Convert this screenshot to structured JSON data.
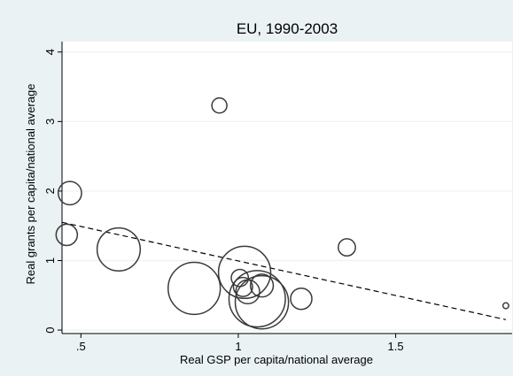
{
  "chart_data": {
    "type": "scatter",
    "title": "EU, 1990-2003",
    "xlabel": "Real GSP per capita/national average",
    "ylabel": "Real grants per capita/national average",
    "xlim": [
      0.44,
      1.87
    ],
    "ylim": [
      -0.05,
      4.15
    ],
    "xticks": [
      0.5,
      1,
      1.5
    ],
    "xtick_labels": [
      ".5",
      "1",
      "1.5"
    ],
    "yticks": [
      0,
      1,
      2,
      3,
      4
    ],
    "ytick_labels": [
      "0",
      "1",
      "2",
      "3",
      "4"
    ],
    "grid": "horizontal",
    "legend": "none",
    "points": [
      {
        "x": 0.94,
        "y": 3.23,
        "weight": 1.0
      },
      {
        "x": 0.465,
        "y": 1.97,
        "weight": 2.4
      },
      {
        "x": 0.455,
        "y": 1.37,
        "weight": 2.0
      },
      {
        "x": 0.62,
        "y": 1.16,
        "weight": 8.2
      },
      {
        "x": 0.86,
        "y": 0.6,
        "weight": 12.0
      },
      {
        "x": 1.005,
        "y": 0.75,
        "weight": 1.3
      },
      {
        "x": 1.015,
        "y": 0.62,
        "weight": 1.6
      },
      {
        "x": 1.02,
        "y": 0.83,
        "weight": 12.0
      },
      {
        "x": 1.03,
        "y": 0.55,
        "weight": 2.5
      },
      {
        "x": 1.06,
        "y": 0.45,
        "weight": 14.0
      },
      {
        "x": 1.075,
        "y": 0.4,
        "weight": 12.5
      },
      {
        "x": 1.075,
        "y": 0.64,
        "weight": 2.3
      },
      {
        "x": 1.2,
        "y": 0.45,
        "weight": 2.0
      },
      {
        "x": 1.345,
        "y": 1.19,
        "weight": 1.3
      },
      {
        "x": 1.85,
        "y": 0.35,
        "weight": 0.15
      }
    ],
    "fit_line": {
      "style": "dashed",
      "x": [
        0.44,
        1.85
      ],
      "y": [
        1.55,
        0.15
      ]
    }
  },
  "colors": {
    "outer_background": "#eaf2f3",
    "plot_background": "#ffffff",
    "marker_stroke": "#3a3a3a",
    "grid": "#eaf2f3",
    "fit_line": "#000000"
  }
}
